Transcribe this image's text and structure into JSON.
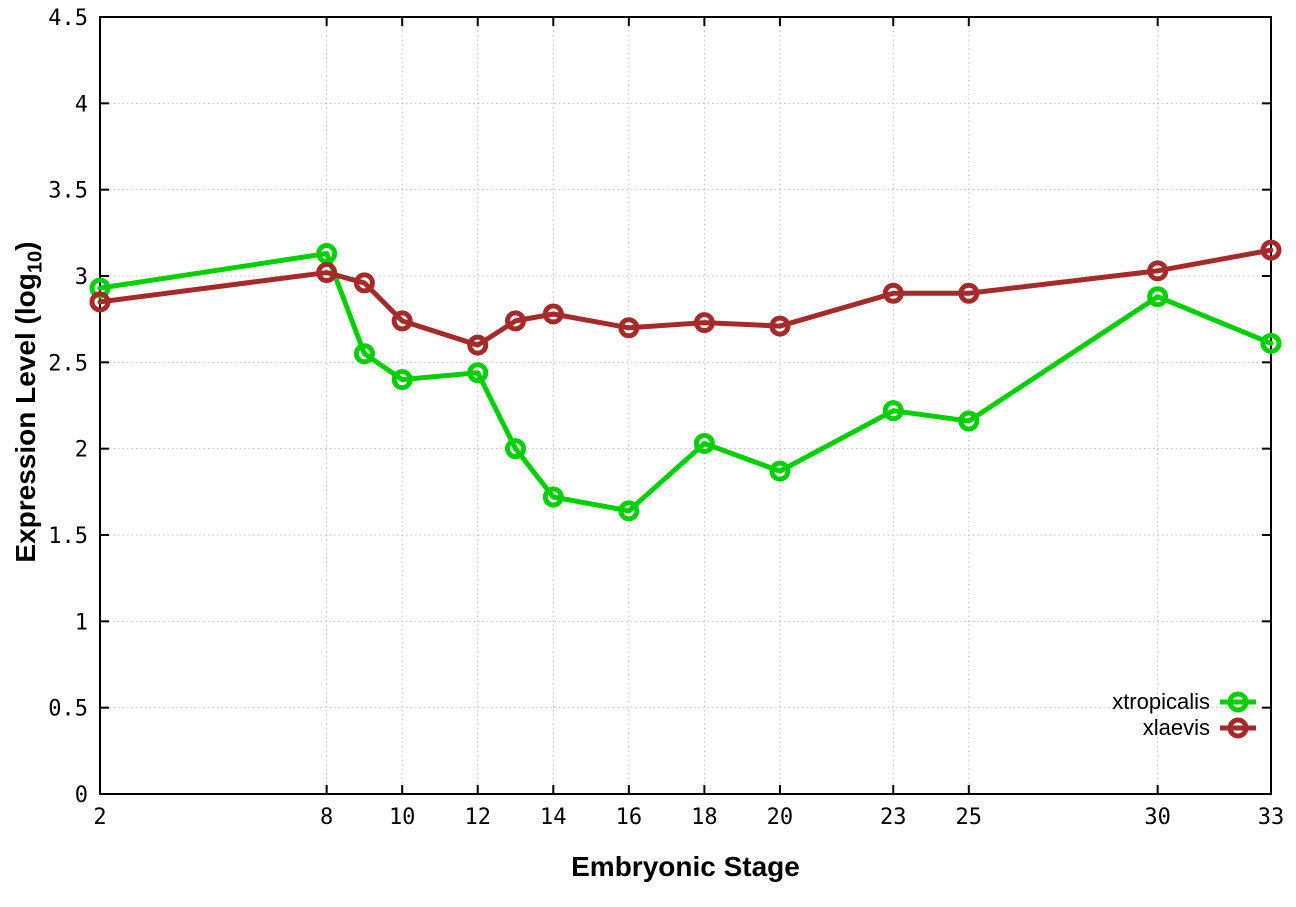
{
  "chart_data": {
    "type": "line",
    "title": "",
    "xlabel": "Embryonic Stage",
    "ylabel": "Expression Level (log10)",
    "ylabel_parts": {
      "pre": "Expression Level (log",
      "sub": "10",
      "post": ")"
    },
    "x": [
      2,
      8,
      9,
      10,
      12,
      13,
      14,
      16,
      18,
      20,
      23,
      25,
      30,
      33
    ],
    "series": [
      {
        "name": "xtropicalis",
        "color": "#00CF00",
        "values": [
          2.93,
          3.13,
          2.55,
          2.4,
          2.44,
          2.0,
          1.72,
          1.64,
          2.03,
          1.87,
          2.22,
          2.16,
          2.88,
          2.61
        ]
      },
      {
        "name": "xlaevis",
        "color": "#A52A2A",
        "values": [
          2.85,
          3.02,
          2.96,
          2.74,
          2.6,
          2.74,
          2.78,
          2.7,
          2.73,
          2.71,
          2.9,
          2.9,
          3.03,
          3.15
        ]
      }
    ],
    "x_ticks": [
      2,
      8,
      10,
      12,
      14,
      16,
      18,
      20,
      23,
      25,
      30,
      33
    ],
    "y_ticks": [
      0,
      0.5,
      1,
      1.5,
      2,
      2.5,
      3,
      3.5,
      4,
      4.5
    ],
    "xlim": [
      2,
      33
    ],
    "ylim": [
      0,
      4.5
    ],
    "grid": true,
    "grid_style": "dotted",
    "legend_position": "bottom-right",
    "colors": {
      "background": "#ffffff",
      "border": "#000000",
      "grid": "#bdbdbd",
      "tick_text": "#000000"
    }
  }
}
